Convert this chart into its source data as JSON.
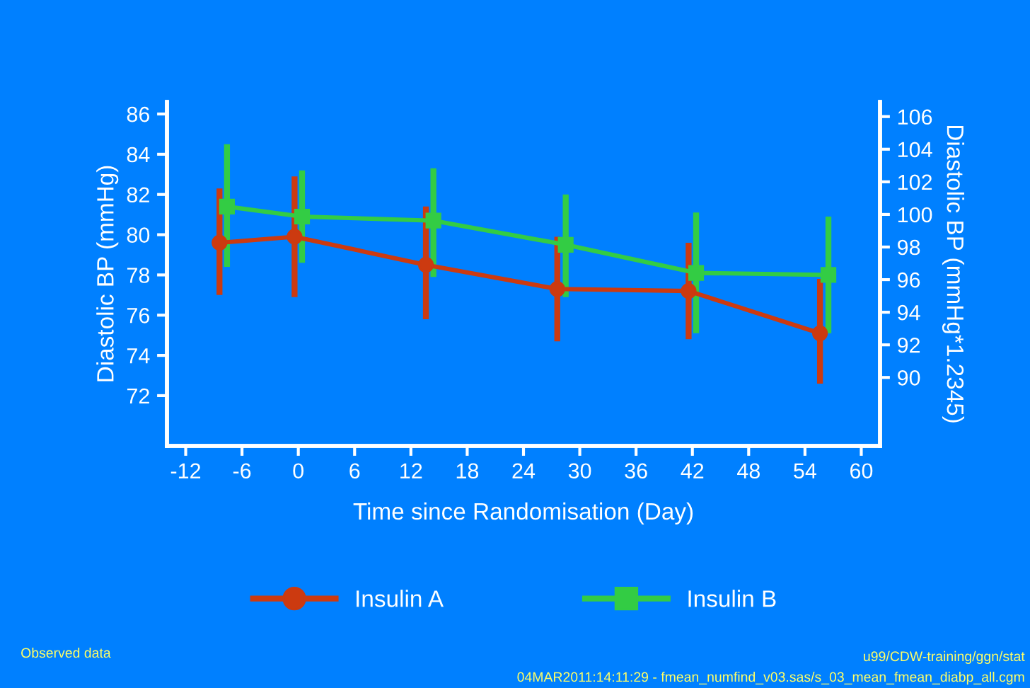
{
  "chart_data": {
    "type": "line",
    "xlabel": "Time since Randomisation (Day)",
    "ylabel": "Diastolic BP (mmHg)",
    "y2label": "Diastolic BP (mmHg*1.2345)",
    "xlim": [
      -14,
      62
    ],
    "xticks": [
      -12,
      -6,
      0,
      6,
      12,
      18,
      24,
      30,
      36,
      42,
      48,
      54,
      60
    ],
    "ylim": [
      69.5,
      86.6
    ],
    "yticks": [
      72,
      74,
      76,
      78,
      80,
      82,
      84,
      86
    ],
    "y2lim": [
      85.8,
      106.9
    ],
    "y2ticks": [
      90,
      92,
      94,
      96,
      98,
      100,
      102,
      104,
      106
    ],
    "series": [
      {
        "name": "Insulin A",
        "color": "#cc3a10",
        "marker": "circle",
        "x": [
          -8.4,
          -0.4,
          13.6,
          27.6,
          41.6,
          55.6
        ],
        "values": [
          79.6,
          79.9,
          78.5,
          77.3,
          77.2,
          75.1
        ],
        "errors": [
          [
            77.0,
            82.3
          ],
          [
            76.9,
            82.9
          ],
          [
            75.8,
            81.4
          ],
          [
            74.7,
            79.9
          ],
          [
            74.8,
            79.6
          ],
          [
            72.6,
            77.8
          ]
        ]
      },
      {
        "name": "Insulin B",
        "color": "#33cc44",
        "marker": "square",
        "x": [
          -7.6,
          0.4,
          14.4,
          28.5,
          42.4,
          56.5
        ],
        "values": [
          81.4,
          80.9,
          80.7,
          79.5,
          78.1,
          78.0
        ],
        "errors": [
          [
            78.4,
            84.5
          ],
          [
            78.6,
            83.2
          ],
          [
            77.9,
            83.3
          ],
          [
            76.9,
            82.0
          ],
          [
            75.1,
            81.1
          ],
          [
            75.1,
            80.9
          ]
        ]
      }
    ],
    "legend": "bottom",
    "grid": false,
    "annotations": [
      "Observed data",
      "u99/CDW-training/ggn/stat",
      "04MAR2011:14:11:29 - fmean_numfind_v03.sas/s_03_mean_fmean_diabp_all.cgm"
    ]
  }
}
